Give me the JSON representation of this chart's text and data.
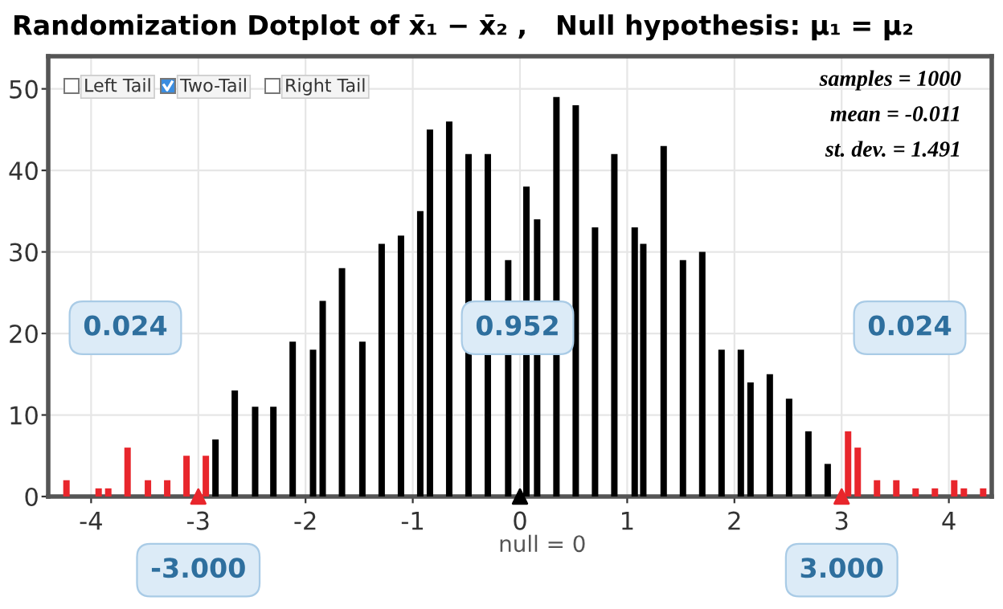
{
  "chart_data": {
    "type": "bar",
    "title": "Randomization Dotplot of x̄₁ − x̄₂ ,   Null hypothesis: μ₁ = μ₂",
    "x": [
      -4.23,
      -3.93,
      -3.84,
      -3.66,
      -3.47,
      -3.29,
      -3.11,
      -2.93,
      -2.84,
      -2.66,
      -2.47,
      -2.3,
      -2.12,
      -1.93,
      -1.84,
      -1.66,
      -1.47,
      -1.29,
      -1.11,
      -0.93,
      -0.84,
      -0.66,
      -0.48,
      -0.3,
      -0.11,
      0.06,
      0.16,
      0.34,
      0.52,
      0.7,
      0.88,
      1.07,
      1.15,
      1.34,
      1.52,
      1.7,
      1.88,
      2.06,
      2.15,
      2.33,
      2.51,
      2.69,
      2.87,
      3.06,
      3.15,
      3.33,
      3.51,
      3.69,
      3.87,
      4.05,
      4.14,
      4.32
    ],
    "values": [
      2,
      1,
      1,
      6,
      2,
      2,
      5,
      5,
      7,
      13,
      11,
      11,
      19,
      18,
      24,
      28,
      19,
      31,
      32,
      35,
      45,
      46,
      42,
      42,
      29,
      38,
      34,
      49,
      48,
      33,
      42,
      33,
      31,
      43,
      29,
      30,
      18,
      18,
      14,
      15,
      12,
      8,
      4,
      8,
      6,
      2,
      2,
      1,
      1,
      2,
      1,
      1
    ],
    "colors": [
      "#e8262c",
      "#e8262c",
      "#e8262c",
      "#e8262c",
      "#e8262c",
      "#e8262c",
      "#e8262c",
      "#e8262c",
      "#000000",
      "#000000",
      "#000000",
      "#000000",
      "#000000",
      "#000000",
      "#000000",
      "#000000",
      "#000000",
      "#000000",
      "#000000",
      "#000000",
      "#000000",
      "#000000",
      "#000000",
      "#000000",
      "#000000",
      "#000000",
      "#000000",
      "#000000",
      "#000000",
      "#000000",
      "#000000",
      "#000000",
      "#000000",
      "#000000",
      "#000000",
      "#000000",
      "#000000",
      "#000000",
      "#000000",
      "#000000",
      "#000000",
      "#000000",
      "#000000",
      "#e8262c",
      "#e8262c",
      "#e8262c",
      "#e8262c",
      "#e8262c",
      "#e8262c",
      "#e8262c",
      "#e8262c",
      "#e8262c"
    ],
    "xlim": [
      -4.4,
      4.4
    ],
    "xticks": [
      -4,
      -3,
      -2,
      -1,
      0,
      1,
      2,
      3,
      4
    ],
    "ylim": [
      0,
      54
    ],
    "yticks": [
      0,
      10,
      20,
      30,
      40,
      50
    ],
    "grid": true,
    "annotations": [
      "Left Tail",
      "Two-Tail",
      "Right Tail",
      "samples = 1000",
      "mean = -0.011",
      "st. dev. = 1.491",
      "0.024",
      "0.952",
      "0.024",
      {
        "text": "-3.000",
        "x": -3,
        "y": 0
      },
      {
        "text": "3.000",
        "x": 3,
        "y": 0
      },
      {
        "text": "null = 0",
        "x": 0,
        "y": 0
      }
    ]
  }
}
